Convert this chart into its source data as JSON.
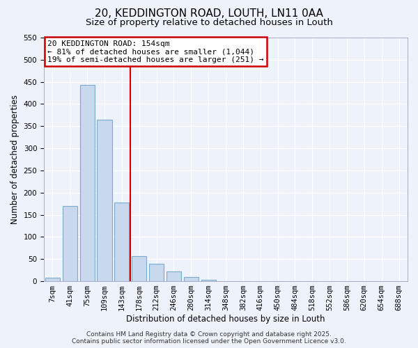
{
  "title_line1": "20, KEDDINGTON ROAD, LOUTH, LN11 0AA",
  "title_line2": "Size of property relative to detached houses in Louth",
  "xlabel": "Distribution of detached houses by size in Louth",
  "ylabel": "Number of detached properties",
  "bar_labels": [
    "7sqm",
    "41sqm",
    "75sqm",
    "109sqm",
    "143sqm",
    "178sqm",
    "212sqm",
    "246sqm",
    "280sqm",
    "314sqm",
    "348sqm",
    "382sqm",
    "416sqm",
    "450sqm",
    "484sqm",
    "518sqm",
    "552sqm",
    "586sqm",
    "620sqm",
    "654sqm",
    "688sqm"
  ],
  "bar_values": [
    8,
    170,
    443,
    365,
    178,
    57,
    40,
    22,
    10,
    3,
    0,
    0,
    0,
    0,
    0,
    0,
    0,
    0,
    0,
    0,
    0
  ],
  "bar_color": "#c8d8ed",
  "bar_edge_color": "#7aabcf",
  "ylim": [
    0,
    550
  ],
  "yticks": [
    0,
    50,
    100,
    150,
    200,
    250,
    300,
    350,
    400,
    450,
    500,
    550
  ],
  "red_line_color": "#cc0000",
  "red_line_x": 4.5,
  "annotation_title": "20 KEDDINGTON ROAD: 154sqm",
  "annotation_line1": "← 81% of detached houses are smaller (1,044)",
  "annotation_line2": "19% of semi-detached houses are larger (251) →",
  "annotation_box_color": "#ffffff",
  "annotation_box_edge": "#cc0000",
  "footer_line1": "Contains HM Land Registry data © Crown copyright and database right 2025.",
  "footer_line2": "Contains public sector information licensed under the Open Government Licence v3.0.",
  "background_color": "#eef2fb",
  "grid_color": "#ffffff",
  "title_fontsize": 11,
  "subtitle_fontsize": 9.5,
  "axis_label_fontsize": 8.5,
  "tick_fontsize": 7.5,
  "annotation_fontsize": 8,
  "footer_fontsize": 6.5
}
